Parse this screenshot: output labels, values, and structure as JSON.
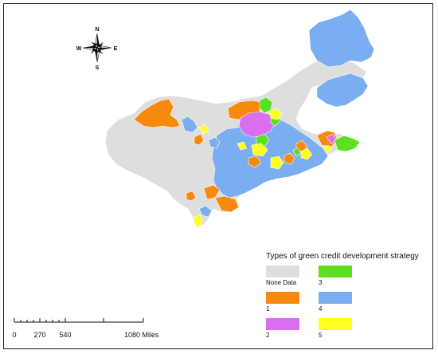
{
  "map": {
    "compass": {
      "n": "N",
      "s": "S",
      "e": "E",
      "w": "W"
    },
    "legend": {
      "title": "Types of green credit development strategy",
      "items": [
        {
          "label": "None Data",
          "color": "#dedede"
        },
        {
          "label": "1",
          "color": "#f7890c"
        },
        {
          "label": "2",
          "color": "#d96ef1"
        },
        {
          "label": "3",
          "color": "#5ae01f"
        },
        {
          "label": "4",
          "color": "#7aaef0"
        },
        {
          "label": "5",
          "color": "#ffff1f"
        }
      ]
    },
    "scale_bar": {
      "ticks": [
        "0",
        "270",
        "540",
        "1080 Miles"
      ]
    }
  }
}
